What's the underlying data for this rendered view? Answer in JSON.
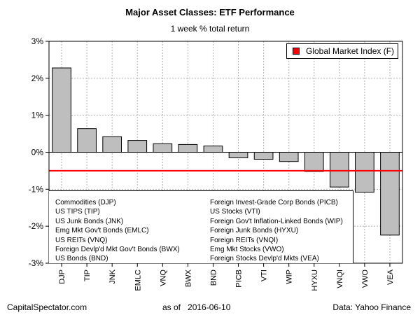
{
  "title": "Major Asset Classes: ETF Performance",
  "subtitle": "1 week % total return",
  "legend": {
    "label": "Global Market Index (F)",
    "color": "#ff0000"
  },
  "footer": {
    "left": "CapitalSpectator.com",
    "as_of": "as of   2016-06-10",
    "right": "Data: Yahoo Finance"
  },
  "key": {
    "left": [
      "Commodities (DJP)",
      "US TIPS (TIP)",
      "US Junk Bonds (JNK)",
      "Emg Mkt Gov't Bonds (EMLC)",
      "US REITs (VNQ)",
      "Foreign Devlp'd Mkt Gov't Bonds (BWX)",
      "US Bonds (BND)"
    ],
    "right": [
      "Foreign Invest-Grade Corp Bonds (PICB)",
      "US Stocks (VTI)",
      "Foreign Gov't Inflation-Linked Bonds (WIP)",
      "Foreign Junk Bonds (HYXU)",
      "Foreign REITs (VNQI)",
      "Emg Mkt Stocks (VWO)",
      "Foreign Stocks Devlp'd Mkts (VEA)"
    ]
  },
  "chart_data": {
    "type": "bar",
    "title": "Major Asset Classes: ETF Performance",
    "subtitle": "1 week % total return",
    "categories": [
      "DJP",
      "TIP",
      "JNK",
      "EMLC",
      "VNQ",
      "BWX",
      "BND",
      "PICB",
      "VTI",
      "WIP",
      "HYXU",
      "VNQI",
      "VWO",
      "VEA"
    ],
    "values": [
      2.28,
      0.64,
      0.42,
      0.32,
      0.23,
      0.21,
      0.17,
      -0.15,
      -0.19,
      -0.25,
      -0.52,
      -0.94,
      -1.08,
      -2.24
    ],
    "reference_line": {
      "name": "Global Market Index (F)",
      "value": -0.5,
      "color": "#ff0000"
    },
    "ylim": [
      -3,
      3
    ],
    "yticks": [
      -3,
      -2,
      -1,
      0,
      1,
      2,
      3
    ],
    "ytick_labels": [
      "-3%",
      "-2%",
      "-1%",
      "0%",
      "1%",
      "2%",
      "3%"
    ],
    "xlabel": "",
    "ylabel": "",
    "grid": true,
    "bar_color": "#bebebe",
    "legend_position": "top-right"
  }
}
